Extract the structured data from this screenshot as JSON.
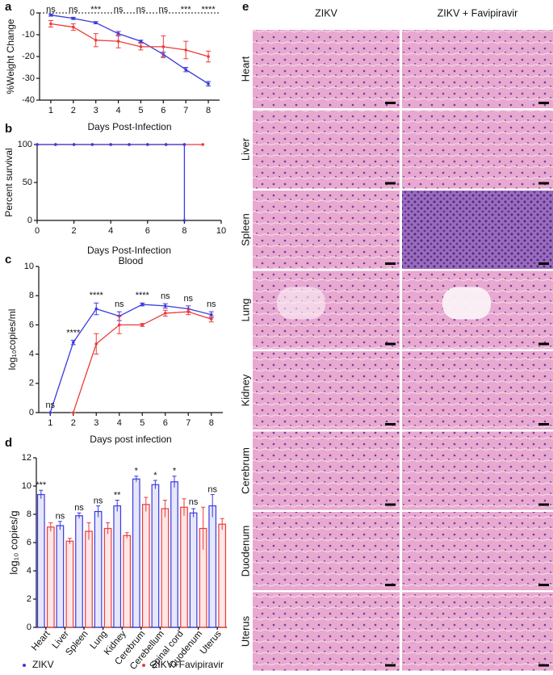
{
  "chart_data": [
    {
      "panel": "a",
      "type": "line",
      "ylabel": "%Weight Change",
      "xlabel": "Days Post-Infection",
      "x": [
        1,
        2,
        3,
        4,
        5,
        6,
        7,
        8
      ],
      "xlim": [
        0.5,
        8.5
      ],
      "xticks": [
        1,
        2,
        3,
        4,
        5,
        6,
        7,
        8
      ],
      "ylim": [
        -40,
        0
      ],
      "yticks": [
        -40,
        -30,
        -20,
        -10,
        0
      ],
      "zero_line": true,
      "series": [
        {
          "color": "#3a3ae0",
          "values": [
            -1,
            -2.5,
            -4.5,
            -9.5,
            -13,
            -19,
            -26,
            -32.5
          ],
          "errors": [
            0.5,
            0.5,
            0.5,
            1,
            0.5,
            1,
            1,
            1
          ]
        },
        {
          "color": "#ee3a3a",
          "values": [
            -5,
            -6.5,
            -12.5,
            -13,
            -15.5,
            -15.5,
            -17,
            -20
          ],
          "errors": [
            1.5,
            1.5,
            3,
            3,
            1.5,
            5,
            4,
            2.5
          ]
        }
      ],
      "annotations": [
        "ns",
        "ns",
        "***",
        "ns",
        "ns",
        "ns",
        "***",
        "****"
      ]
    },
    {
      "panel": "b",
      "type": "line",
      "ylabel": "Percent survival",
      "xlabel": "Days Post-Infection",
      "xlim": [
        0,
        10
      ],
      "xticks": [
        0,
        2,
        4,
        6,
        8,
        10
      ],
      "ylim": [
        0,
        100
      ],
      "yticks": [
        0,
        50,
        100
      ],
      "series": [
        {
          "color": "#ee3a3a",
          "x": [
            0,
            1,
            2,
            3,
            4,
            5,
            6,
            7,
            8,
            9
          ],
          "values": [
            100,
            100,
            100,
            100,
            100,
            100,
            100,
            100,
            100,
            100
          ]
        },
        {
          "color": "#3a3ae0",
          "x": [
            0,
            1,
            2,
            3,
            4,
            5,
            6,
            7,
            8,
            8
          ],
          "values": [
            100,
            100,
            100,
            100,
            100,
            100,
            100,
            100,
            100,
            0
          ]
        }
      ]
    },
    {
      "panel": "c",
      "type": "line",
      "title": "Blood",
      "ylabel": "log₁₀copies/ml",
      "xlabel": "Days post infection",
      "x": [
        1,
        2,
        3,
        4,
        5,
        6,
        7,
        8
      ],
      "xlim": [
        0.5,
        8.5
      ],
      "xticks": [
        1,
        2,
        3,
        4,
        5,
        6,
        7,
        8
      ],
      "ylim": [
        0,
        10
      ],
      "yticks": [
        0,
        2,
        4,
        6,
        8,
        10
      ],
      "series": [
        {
          "color": "#3a3ae0",
          "values": [
            0,
            4.8,
            7.1,
            6.6,
            7.4,
            7.3,
            7.1,
            6.7
          ],
          "errors": [
            0,
            0.15,
            0.4,
            0.3,
            0.1,
            0.15,
            0.2,
            0.2
          ]
        },
        {
          "color": "#ee3a3a",
          "values": [
            null,
            0,
            4.7,
            6.0,
            6.0,
            6.8,
            6.9,
            6.4
          ],
          "errors": [
            null,
            0,
            0.7,
            0.6,
            0.1,
            0.2,
            0.2,
            0.2
          ]
        }
      ],
      "annotations": [
        "ns",
        "****",
        "****",
        "ns",
        "****",
        "ns",
        "ns",
        "ns"
      ]
    },
    {
      "panel": "d",
      "type": "bar",
      "ylabel": "log₁₀ copies/g",
      "categories": [
        "Heart",
        "Liver",
        "Spleen",
        "Lung",
        "Kidney",
        "Cerebrum",
        "Cerebellum",
        "Spinal cord",
        "Duodenum",
        "Uterus"
      ],
      "ylim": [
        0,
        12
      ],
      "yticks": [
        0,
        2,
        4,
        6,
        8,
        10,
        12
      ],
      "legend": "bottom",
      "series": [
        {
          "name": "ZIKV",
          "color": "#3a3ae0",
          "values": [
            9.4,
            7.2,
            7.9,
            8.2,
            8.6,
            10.5,
            10.1,
            10.3,
            8.1,
            8.6
          ],
          "errors": [
            0.3,
            0.3,
            0.2,
            0.4,
            0.4,
            0.2,
            0.3,
            0.4,
            0.3,
            0.8
          ]
        },
        {
          "name": "ZIKV+Favipiravir",
          "color": "#ee3a3a",
          "values": [
            7.1,
            6.1,
            6.8,
            7.0,
            6.5,
            8.7,
            8.4,
            8.5,
            7.0,
            7.3
          ],
          "errors": [
            0.3,
            0.2,
            0.6,
            0.4,
            0.2,
            0.5,
            0.6,
            0.6,
            1.5,
            0.4
          ]
        }
      ],
      "annotations": [
        "***",
        "ns",
        "ns",
        "ns",
        "**",
        "*",
        "*",
        "*",
        "ns",
        "ns"
      ]
    }
  ],
  "panel_e": {
    "panel": "e",
    "columns": [
      "ZIKV",
      "ZIKV + Favipiravir"
    ],
    "rows": [
      "Heart",
      "Liver",
      "Spleen",
      "Lung",
      "Kidney",
      "Cerebrum",
      "Duodenum",
      "Uterus"
    ]
  }
}
